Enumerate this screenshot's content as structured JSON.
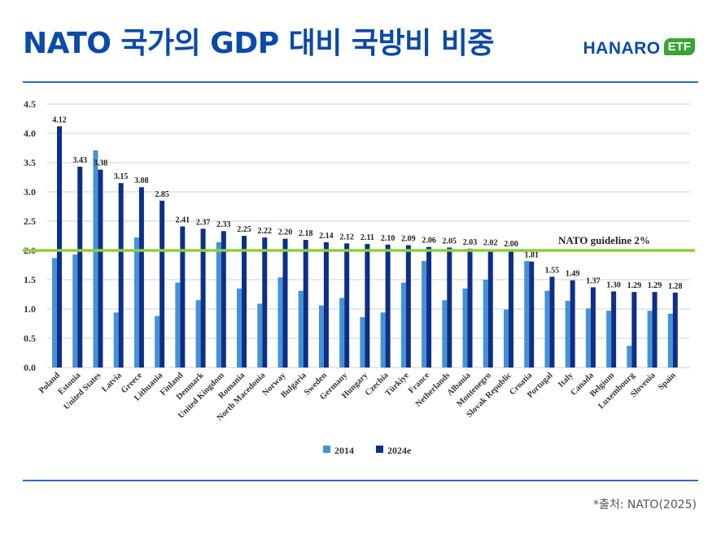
{
  "header": {
    "title": "NATO 국가의 GDP 대비 국방비 비중",
    "brand_main": "HANARO",
    "brand_badge": "ETF"
  },
  "footer": {
    "source": "*출처: NATO(2025)"
  },
  "colors": {
    "series_2014": "#4593d4",
    "series_2024e": "#0d2f87",
    "guideline": "#8ccf3e",
    "title": "#0a4aa8",
    "brand_badge": "#3aa435"
  },
  "chart_data": {
    "type": "bar",
    "categories": [
      "Poland",
      "Estonia",
      "United States",
      "Latvia",
      "Greece",
      "Lithuania",
      "Finland",
      "Denmark",
      "United Kingdom",
      "Romania",
      "North Macedonia",
      "Norway",
      "Bulgaria",
      "Sweden",
      "Germany",
      "Hungary",
      "Czechia",
      "Türkiye",
      "France",
      "Netherlands",
      "Albania",
      "Montenegro",
      "Slovak Republic",
      "Croatia",
      "Portugal",
      "Italy",
      "Canada",
      "Belgium",
      "Luxembourg",
      "Slovenia",
      "Spain"
    ],
    "series": [
      {
        "name": "2014",
        "values": [
          1.87,
          1.93,
          3.71,
          0.94,
          2.22,
          0.88,
          1.45,
          1.15,
          2.14,
          1.35,
          1.09,
          1.54,
          1.31,
          1.06,
          1.19,
          0.86,
          0.94,
          1.45,
          1.82,
          1.15,
          1.35,
          1.5,
          0.99,
          1.82,
          1.31,
          1.14,
          1.01,
          0.97,
          0.37,
          0.97,
          0.92
        ]
      },
      {
        "name": "2024e",
        "values": [
          4.12,
          3.43,
          3.38,
          3.15,
          3.08,
          2.85,
          2.41,
          2.37,
          2.33,
          2.25,
          2.22,
          2.2,
          2.18,
          2.14,
          2.12,
          2.11,
          2.1,
          2.09,
          2.06,
          2.05,
          2.03,
          2.02,
          2.0,
          1.81,
          1.55,
          1.49,
          1.37,
          1.3,
          1.29,
          1.29,
          1.28
        ]
      }
    ],
    "data_labels_2024e": [
      "4.12",
      "3.43",
      "3.38",
      "3.15",
      "3.08",
      "2.85",
      "2.41",
      "2.37",
      "2.33",
      "2.25",
      "2.22",
      "2.20",
      "2.18",
      "2.14",
      "2.12",
      "2.11",
      "2.10",
      "2.09",
      "2.06",
      "2.05",
      "2.03",
      "2.02",
      "2.00",
      "1.81",
      "1.55",
      "1.49",
      "1.37",
      "1.30",
      "1.29",
      "1.29",
      "1.28"
    ],
    "ylim": [
      0,
      4.5
    ],
    "yticks": [
      "0.0",
      "0.5",
      "1.0",
      "1.5",
      "2.0",
      "2.5",
      "3.0",
      "3.5",
      "4.0",
      "4.5"
    ],
    "grid": true,
    "reference_line": {
      "value": 2.0,
      "label": "NATO guideline 2%"
    },
    "legend": {
      "placement": "bottom",
      "entries": [
        "2014",
        "2024e"
      ]
    }
  }
}
